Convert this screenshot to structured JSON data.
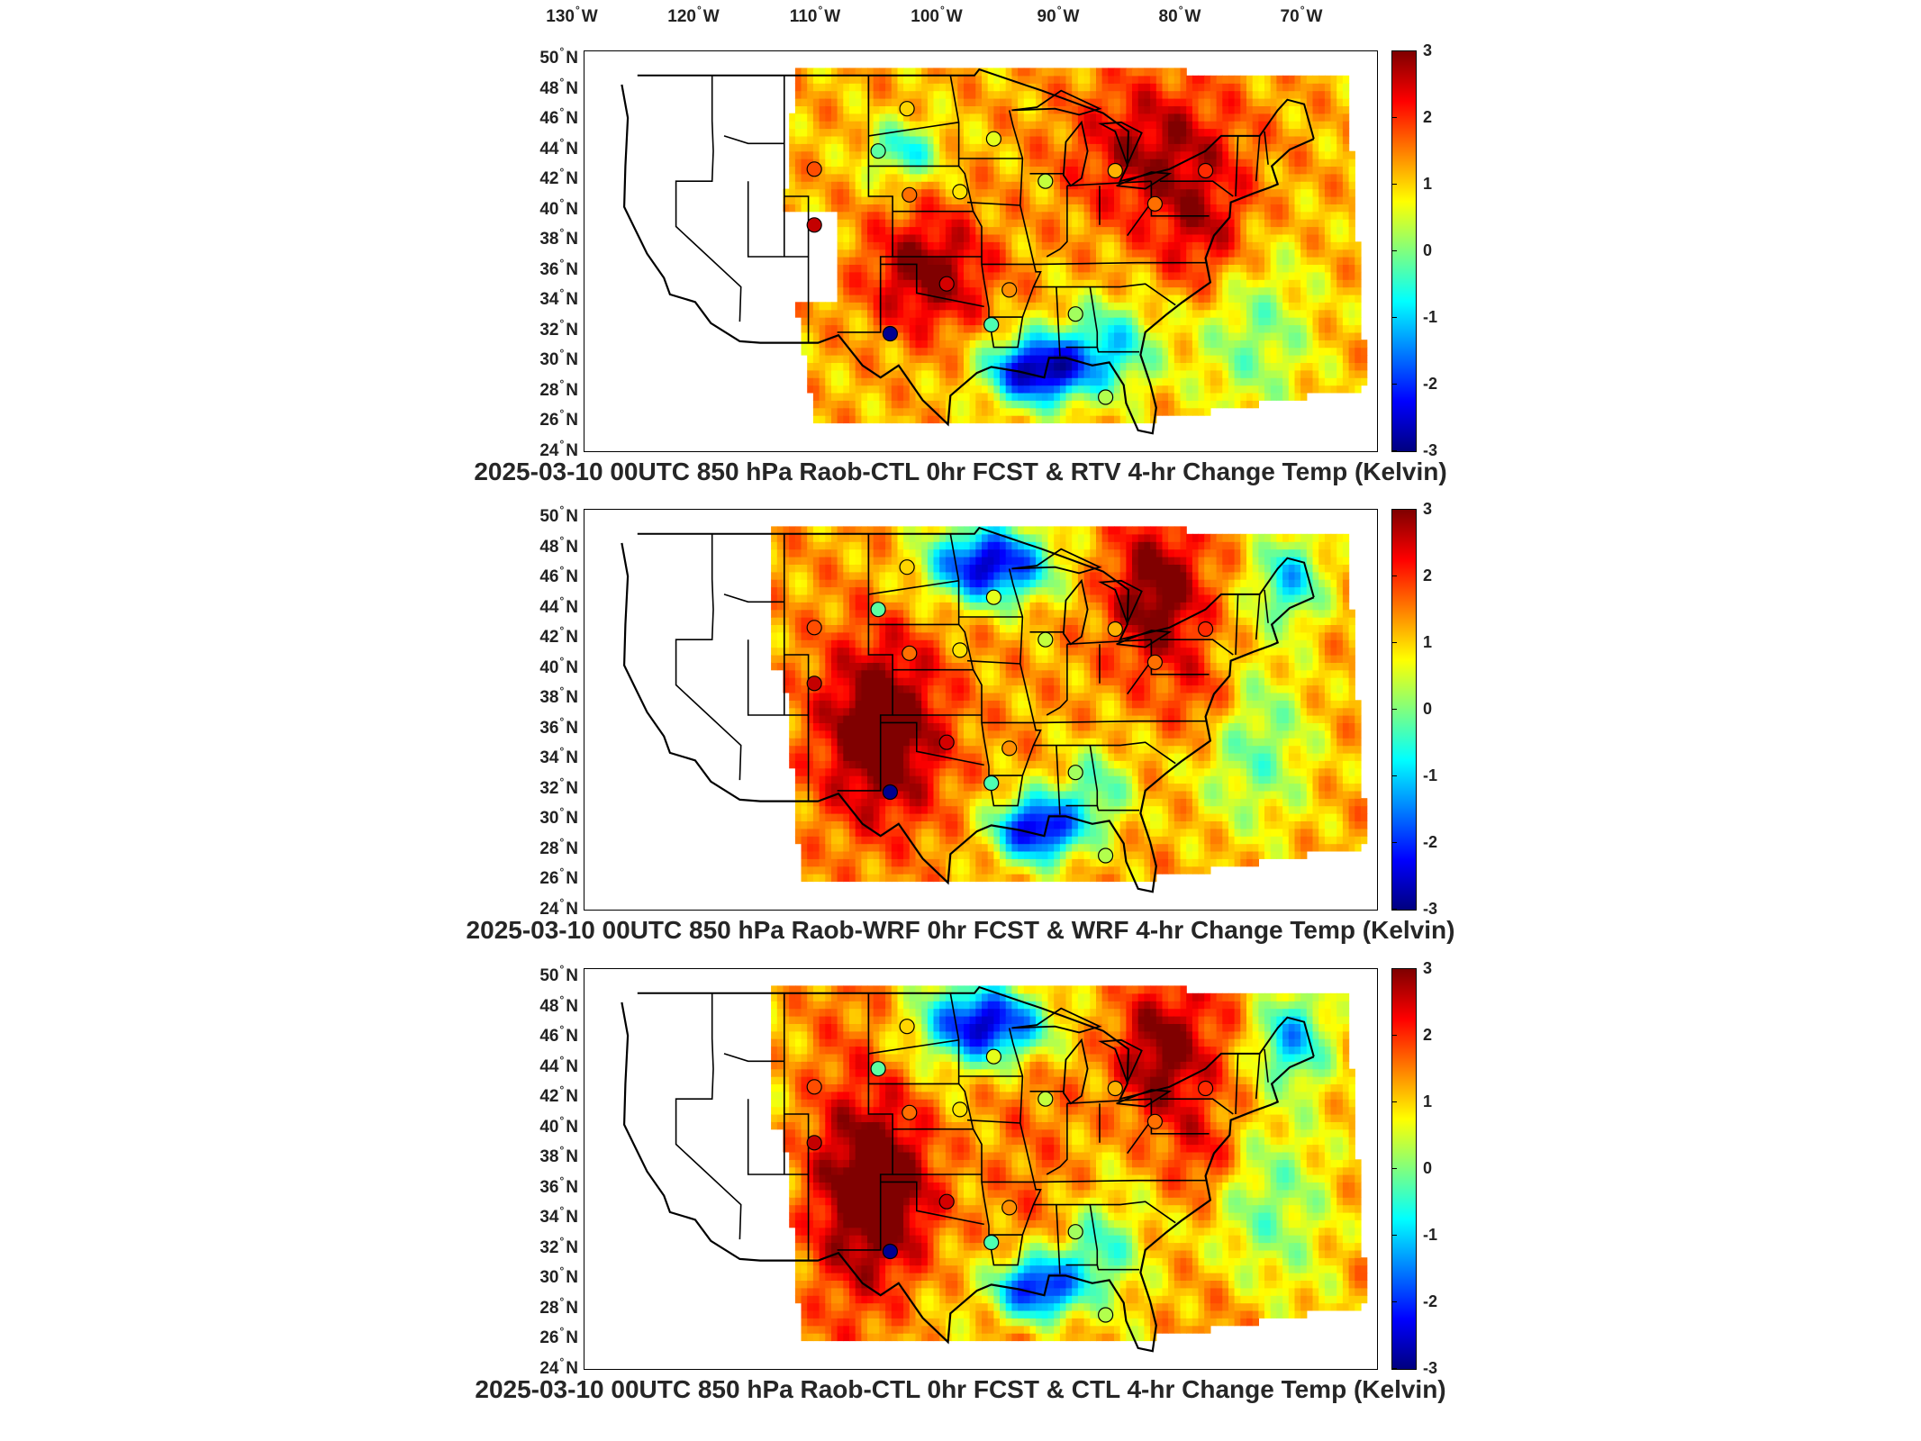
{
  "longitude_labels": [
    "130",
    "120",
    "110",
    "100",
    "90",
    "80",
    "70"
  ],
  "longitude_hemisphere": "W",
  "latitude_labels": [
    "50",
    "48",
    "46",
    "44",
    "42",
    "40",
    "38",
    "36",
    "34",
    "32",
    "30",
    "28",
    "26",
    "24"
  ],
  "latitude_hemisphere": "N",
  "degree_symbol": "°",
  "colorbar": {
    "ticks": [
      "3",
      "2",
      "1",
      "0",
      "-1",
      "-2",
      "-3"
    ],
    "range": [
      -3,
      3
    ],
    "colormap": "jet",
    "colors": [
      "#00007f",
      "#0000ff",
      "#007fff",
      "#00ffff",
      "#7fff7f",
      "#ffff00",
      "#ff7f00",
      "#ff0000",
      "#7f0000"
    ]
  },
  "panels": [
    {
      "title": "2025-03-10 00UTC 850 hPa Raob-CTL 0hr FCST & RTV 4-hr Change Temp (Kelvin)",
      "pattern": "rtv"
    },
    {
      "title": "2025-03-10 00UTC 850 hPa Raob-WRF 0hr FCST & WRF 4-hr Change Temp (Kelvin)",
      "pattern": "wrf"
    },
    {
      "title": "2025-03-10 00UTC 850 hPa Raob-CTL 0hr FCST & CTL 4-hr Change Temp (Kelvin)",
      "pattern": "ctl"
    }
  ],
  "raob_stations": [
    {
      "lon": -100.8,
      "lat": 46.8,
      "value": 1.0
    },
    {
      "lon": -93.6,
      "lat": 44.8,
      "value": 0.6
    },
    {
      "lon": -103.2,
      "lat": 44.0,
      "value": -0.2
    },
    {
      "lon": -108.5,
      "lat": 42.8,
      "value": 1.8
    },
    {
      "lon": -100.6,
      "lat": 41.1,
      "value": 1.6
    },
    {
      "lon": -96.4,
      "lat": 41.3,
      "value": 0.9
    },
    {
      "lon": -89.3,
      "lat": 42.0,
      "value": 0.4
    },
    {
      "lon": -83.5,
      "lat": 42.7,
      "value": 1.2
    },
    {
      "lon": -76.0,
      "lat": 42.7,
      "value": 2.0
    },
    {
      "lon": -80.2,
      "lat": 40.5,
      "value": 1.6
    },
    {
      "lon": -108.5,
      "lat": 39.1,
      "value": 2.6
    },
    {
      "lon": -97.5,
      "lat": 35.2,
      "value": 2.5
    },
    {
      "lon": -92.3,
      "lat": 34.8,
      "value": 1.4
    },
    {
      "lon": -86.8,
      "lat": 33.2,
      "value": 0.2
    },
    {
      "lon": -93.8,
      "lat": 32.5,
      "value": -0.3
    },
    {
      "lon": -102.2,
      "lat": 31.9,
      "value": -2.9
    },
    {
      "lon": -84.3,
      "lat": 27.7,
      "value": 0.3
    }
  ]
}
